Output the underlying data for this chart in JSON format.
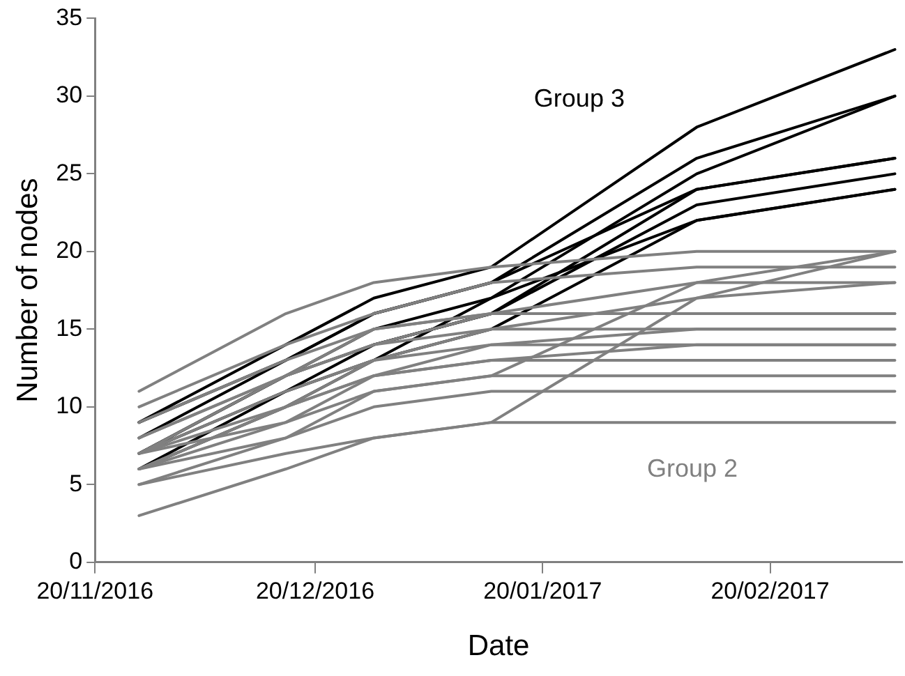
{
  "chart_data": {
    "type": "line",
    "xlabel": "Date",
    "ylabel": "Number of nodes",
    "x": [
      "2016-11-26",
      "2016-12-16",
      "2016-12-28",
      "2017-01-13",
      "2017-02-10",
      "2017-03-09"
    ],
    "xlim": [
      "2016-11-20",
      "2017-03-10"
    ],
    "xticks": [
      {
        "value": "2016-11-20",
        "label": "20/11/2016"
      },
      {
        "value": "2016-12-20",
        "label": "20/12/2016"
      },
      {
        "value": "2017-01-20",
        "label": "20/01/2017"
      },
      {
        "value": "2017-02-20",
        "label": "20/02/2017"
      }
    ],
    "ylim": [
      0,
      35
    ],
    "yticks": [
      0,
      5,
      10,
      15,
      20,
      25,
      30,
      35
    ],
    "grid": false,
    "legend": false,
    "marker": "none",
    "line_style": "solid",
    "annotations": [
      "Group 3",
      "Group 2"
    ],
    "series": [
      {
        "color": "#808080",
        "values": [
          11,
          16,
          18,
          19,
          20,
          20
        ]
      },
      {
        "color": "#808080",
        "values": [
          10,
          14,
          16,
          18,
          19,
          19
        ]
      },
      {
        "color": "#808080",
        "values": [
          8,
          12,
          15,
          16,
          18,
          18
        ]
      },
      {
        "color": "#808080",
        "values": [
          9,
          13,
          15,
          16,
          16,
          16
        ]
      },
      {
        "color": "#808080",
        "values": [
          7,
          12,
          14,
          15,
          15,
          15
        ]
      },
      {
        "color": "#808080",
        "values": [
          7,
          11,
          13,
          14,
          14,
          14
        ]
      },
      {
        "color": "#808080",
        "values": [
          6,
          10,
          12,
          13,
          13,
          13
        ]
      },
      {
        "color": "#808080",
        "values": [
          6,
          9,
          11,
          12,
          12,
          12
        ]
      },
      {
        "color": "#808080",
        "values": [
          5,
          8,
          10,
          11,
          11,
          11
        ]
      },
      {
        "color": "#808080",
        "values": [
          3,
          6,
          8,
          9,
          9,
          9
        ]
      },
      {
        "color": "#808080",
        "values": [
          5,
          7,
          8,
          9,
          17,
          20
        ]
      },
      {
        "color": "#808080",
        "values": [
          6,
          8,
          11,
          12,
          18,
          20
        ]
      },
      {
        "color": "#808080",
        "values": [
          7,
          10,
          13,
          15,
          17,
          18
        ]
      },
      {
        "color": "#808080",
        "values": [
          8,
          12,
          14,
          16,
          16,
          16
        ]
      },
      {
        "color": "#808080",
        "values": [
          6,
          10,
          12,
          14,
          15,
          15
        ]
      },
      {
        "color": "#808080",
        "values": [
          7,
          9,
          12,
          13,
          14,
          14
        ]
      },
      {
        "color": "#000000",
        "values": [
          9,
          14,
          17,
          19,
          28,
          33
        ]
      },
      {
        "color": "#000000",
        "values": [
          9,
          13,
          16,
          18,
          26,
          30
        ]
      },
      {
        "color": "#000000",
        "values": [
          7,
          12,
          15,
          17,
          25,
          30
        ]
      },
      {
        "color": "#000000",
        "values": [
          8,
          13,
          16,
          18,
          24,
          26
        ]
      },
      {
        "color": "#000000",
        "values": [
          7,
          11,
          14,
          16,
          24,
          26
        ]
      },
      {
        "color": "#000000",
        "values": [
          7,
          12,
          14,
          16,
          23,
          25
        ]
      },
      {
        "color": "#000000",
        "values": [
          6,
          11,
          13,
          17,
          22,
          24
        ]
      },
      {
        "color": "#000000",
        "values": [
          6,
          10,
          13,
          15,
          22,
          24
        ]
      }
    ]
  }
}
